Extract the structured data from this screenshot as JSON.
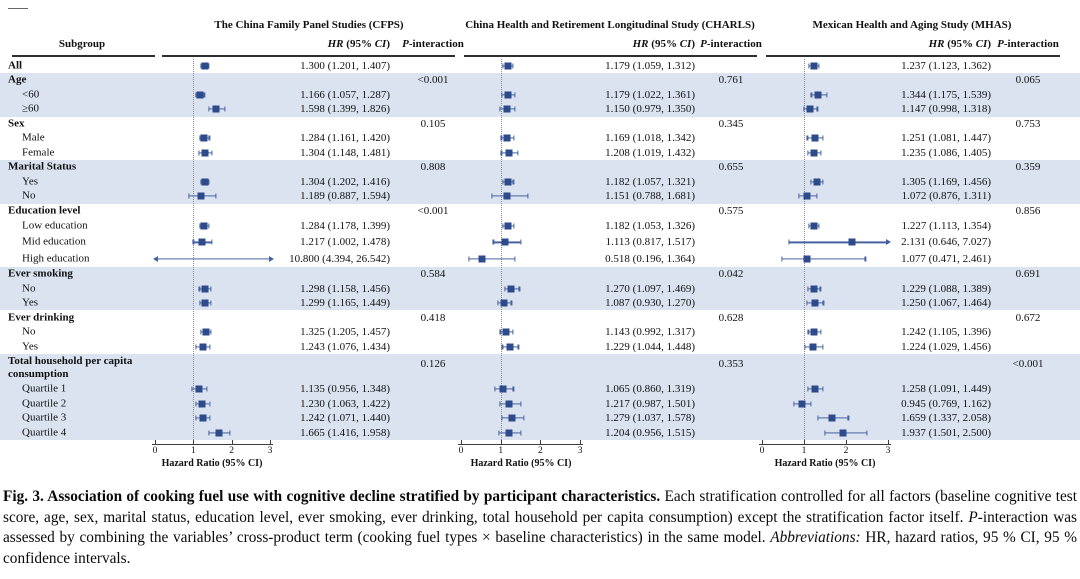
{
  "figure": {
    "subgroup_header": "Subgroup",
    "hr_header": {
      "hr": "HR",
      "mid": " (95% ",
      "ci": "CI",
      "end": ")"
    },
    "p_header": {
      "p": "P",
      "rest": "-interaction"
    }
  },
  "chart_data": {
    "type": "forest",
    "xlabel": "Hazard Ratio (95% CI)",
    "x_ticks": [
      0,
      1,
      2,
      3
    ],
    "xlim": [
      0,
      3
    ],
    "reference_line": 1,
    "legend_position": "none",
    "studies": [
      "The China Family Panel Studies (CFPS)",
      "China Health and Retirement Longitudinal Study (CHARLS)",
      "Mexican Health and Aging Study (MHAS)"
    ],
    "rows": [
      {
        "label": "All",
        "kind": "item",
        "bold": true,
        "band": "white",
        "est": [
          {
            "hr": 1.3,
            "lo": 1.201,
            "hi": 1.407,
            "text": "1.300 (1.201, 1.407)"
          },
          {
            "hr": 1.179,
            "lo": 1.059,
            "hi": 1.312,
            "text": "1.179 (1.059, 1.312)"
          },
          {
            "hr": 1.237,
            "lo": 1.123,
            "hi": 1.362,
            "text": "1.237 (1.123, 1.362)"
          }
        ]
      },
      {
        "label": "Age",
        "kind": "group",
        "band": "blue",
        "p_values": [
          "<0.001",
          "0.761",
          "0.065"
        ]
      },
      {
        "label": "<60",
        "kind": "item",
        "band": "blue",
        "est": [
          {
            "hr": 1.166,
            "lo": 1.057,
            "hi": 1.287,
            "text": "1.166 (1.057, 1.287)"
          },
          {
            "hr": 1.179,
            "lo": 1.022,
            "hi": 1.361,
            "text": "1.179 (1.022, 1.361)"
          },
          {
            "hr": 1.344,
            "lo": 1.175,
            "hi": 1.539,
            "text": "1.344 (1.175, 1.539)"
          }
        ]
      },
      {
        "label": "≥60",
        "kind": "item",
        "band": "blue",
        "est": [
          {
            "hr": 1.598,
            "lo": 1.399,
            "hi": 1.826,
            "text": "1.598 (1.399, 1.826)"
          },
          {
            "hr": 1.15,
            "lo": 0.979,
            "hi": 1.35,
            "text": "1.150 (0.979, 1.350)"
          },
          {
            "hr": 1.147,
            "lo": 0.998,
            "hi": 1.318,
            "text": "1.147 (0.998, 1.318)"
          }
        ]
      },
      {
        "label": "Sex",
        "kind": "group",
        "band": "white",
        "p_values": [
          "0.105",
          "0.345",
          "0.753"
        ]
      },
      {
        "label": "Male",
        "kind": "item",
        "band": "white",
        "est": [
          {
            "hr": 1.284,
            "lo": 1.161,
            "hi": 1.42,
            "text": "1.284 (1.161, 1.420)"
          },
          {
            "hr": 1.169,
            "lo": 1.018,
            "hi": 1.342,
            "text": "1.169 (1.018, 1.342)"
          },
          {
            "hr": 1.251,
            "lo": 1.081,
            "hi": 1.447,
            "text": "1.251 (1.081, 1.447)"
          }
        ]
      },
      {
        "label": "Female",
        "kind": "item",
        "band": "white",
        "est": [
          {
            "hr": 1.304,
            "lo": 1.148,
            "hi": 1.481,
            "text": "1.304 (1.148, 1.481)"
          },
          {
            "hr": 1.208,
            "lo": 1.019,
            "hi": 1.432,
            "text": "1.208 (1.019, 1.432)"
          },
          {
            "hr": 1.235,
            "lo": 1.086,
            "hi": 1.405,
            "text": "1.235 (1.086, 1.405)"
          }
        ]
      },
      {
        "label": "Marital Status",
        "kind": "group",
        "band": "blue",
        "p_values": [
          "0.808",
          "0.655",
          "0.359"
        ]
      },
      {
        "label": "Yes",
        "kind": "item",
        "band": "blue",
        "est": [
          {
            "hr": 1.304,
            "lo": 1.202,
            "hi": 1.416,
            "text": "1.304 (1.202, 1.416)"
          },
          {
            "hr": 1.182,
            "lo": 1.057,
            "hi": 1.321,
            "text": "1.182 (1.057, 1.321)"
          },
          {
            "hr": 1.305,
            "lo": 1.169,
            "hi": 1.456,
            "text": "1.305 (1.169, 1.456)"
          }
        ]
      },
      {
        "label": "No",
        "kind": "item",
        "band": "blue",
        "est": [
          {
            "hr": 1.189,
            "lo": 0.887,
            "hi": 1.594,
            "text": "1.189 (0.887, 1.594)"
          },
          {
            "hr": 1.151,
            "lo": 0.788,
            "hi": 1.681,
            "text": "1.151 (0.788, 1.681)"
          },
          {
            "hr": 1.072,
            "lo": 0.876,
            "hi": 1.311,
            "text": "1.072 (0.876, 1.311)"
          }
        ]
      },
      {
        "label": "Education level",
        "kind": "group",
        "band": "white",
        "p_values": [
          "<0.001",
          "0.575",
          "0.856"
        ]
      },
      {
        "label": "Low education",
        "kind": "item",
        "tall": true,
        "band": "white",
        "est": [
          {
            "hr": 1.284,
            "lo": 1.178,
            "hi": 1.399,
            "text": "1.284 (1.178, 1.399)"
          },
          {
            "hr": 1.182,
            "lo": 1.053,
            "hi": 1.326,
            "text": "1.182 (1.053, 1.326)"
          },
          {
            "hr": 1.227,
            "lo": 1.113,
            "hi": 1.354,
            "text": "1.227 (1.113, 1.354)"
          }
        ]
      },
      {
        "label": "Mid education",
        "kind": "item",
        "tall": true,
        "band": "white",
        "est": [
          {
            "hr": 1.217,
            "lo": 1.002,
            "hi": 1.478,
            "text": "1.217 (1.002, 1.478)"
          },
          {
            "hr": 1.113,
            "lo": 0.817,
            "hi": 1.517,
            "text": "1.113 (0.817, 1.517)"
          },
          {
            "hr": 2.131,
            "lo": 0.646,
            "hi": 7.027,
            "text": "2.131 (0.646, 7.027)",
            "arrow": "right"
          }
        ]
      },
      {
        "label": "High education",
        "kind": "item",
        "tall": true,
        "band": "white",
        "est": [
          {
            "hr": 10.8,
            "lo": 4.394,
            "hi": 26.542,
            "text": "10.800 (4.394, 26.542)",
            "arrow": "both"
          },
          {
            "hr": 0.518,
            "lo": 0.196,
            "hi": 1.364,
            "text": "0.518 (0.196, 1.364)"
          },
          {
            "hr": 1.077,
            "lo": 0.471,
            "hi": 2.461,
            "text": "1.077 (0.471, 2.461)"
          }
        ]
      },
      {
        "label": "Ever smoking",
        "kind": "group",
        "band": "blue",
        "p_values": [
          "0.584",
          "0.042",
          "0.691"
        ]
      },
      {
        "label": "No",
        "kind": "item",
        "band": "blue",
        "est": [
          {
            "hr": 1.298,
            "lo": 1.158,
            "hi": 1.456,
            "text": "1.298 (1.158, 1.456)"
          },
          {
            "hr": 1.27,
            "lo": 1.097,
            "hi": 1.469,
            "text": "1.270 (1.097, 1.469)"
          },
          {
            "hr": 1.229,
            "lo": 1.088,
            "hi": 1.389,
            "text": "1.229 (1.088, 1.389)"
          }
        ]
      },
      {
        "label": "Yes",
        "kind": "item",
        "band": "blue",
        "est": [
          {
            "hr": 1.299,
            "lo": 1.165,
            "hi": 1.449,
            "text": "1.299 (1.165, 1.449)"
          },
          {
            "hr": 1.087,
            "lo": 0.93,
            "hi": 1.27,
            "text": "1.087 (0.930, 1.270)"
          },
          {
            "hr": 1.25,
            "lo": 1.067,
            "hi": 1.464,
            "text": "1.250 (1.067, 1.464)"
          }
        ]
      },
      {
        "label": "Ever drinking",
        "kind": "group",
        "band": "white",
        "p_values": [
          "0.418",
          "0.628",
          "0.672"
        ]
      },
      {
        "label": "No",
        "kind": "item",
        "band": "white",
        "est": [
          {
            "hr": 1.325,
            "lo": 1.205,
            "hi": 1.457,
            "text": "1.325 (1.205, 1.457)"
          },
          {
            "hr": 1.143,
            "lo": 0.992,
            "hi": 1.317,
            "text": "1.143 (0.992, 1.317)"
          },
          {
            "hr": 1.242,
            "lo": 1.105,
            "hi": 1.396,
            "text": "1.242 (1.105, 1.396)"
          }
        ]
      },
      {
        "label": "Yes",
        "kind": "item",
        "band": "white",
        "est": [
          {
            "hr": 1.243,
            "lo": 1.076,
            "hi": 1.434,
            "text": "1.243 (1.076, 1.434)"
          },
          {
            "hr": 1.229,
            "lo": 1.044,
            "hi": 1.448,
            "text": "1.229 (1.044, 1.448)"
          },
          {
            "hr": 1.224,
            "lo": 1.029,
            "hi": 1.456,
            "text": "1.224 (1.029, 1.456)"
          }
        ]
      },
      {
        "label": "Total household per capita consumption",
        "kind": "group2",
        "band": "blue",
        "label_lines": [
          "Total household per capita",
          "consumption"
        ],
        "p_values": [
          "0.126",
          "0.353",
          "<0.001"
        ]
      },
      {
        "label": "Quartile 1",
        "kind": "item",
        "band": "blue",
        "est": [
          {
            "hr": 1.135,
            "lo": 0.956,
            "hi": 1.348,
            "text": "1.135 (0.956, 1.348)"
          },
          {
            "hr": 1.065,
            "lo": 0.86,
            "hi": 1.319,
            "text": "1.065 (0.860, 1.319)"
          },
          {
            "hr": 1.258,
            "lo": 1.091,
            "hi": 1.449,
            "text": "1.258 (1.091, 1.449)"
          }
        ]
      },
      {
        "label": "Quartile 2",
        "kind": "item",
        "band": "blue",
        "est": [
          {
            "hr": 1.23,
            "lo": 1.063,
            "hi": 1.422,
            "text": "1.230 (1.063, 1.422)"
          },
          {
            "hr": 1.217,
            "lo": 0.987,
            "hi": 1.501,
            "text": "1.217 (0.987, 1.501)"
          },
          {
            "hr": 0.945,
            "lo": 0.769,
            "hi": 1.162,
            "text": "0.945 (0.769, 1.162)"
          }
        ]
      },
      {
        "label": "Quartile 3",
        "kind": "item",
        "band": "blue",
        "est": [
          {
            "hr": 1.242,
            "lo": 1.071,
            "hi": 1.44,
            "text": "1.242 (1.071, 1.440)"
          },
          {
            "hr": 1.279,
            "lo": 1.037,
            "hi": 1.578,
            "text": "1.279 (1.037, 1.578)"
          },
          {
            "hr": 1.659,
            "lo": 1.337,
            "hi": 2.058,
            "text": "1.659 (1.337, 2.058)"
          }
        ]
      },
      {
        "label": "Quartile 4",
        "kind": "item",
        "band": "blue",
        "est": [
          {
            "hr": 1.665,
            "lo": 1.416,
            "hi": 1.958,
            "text": "1.665 (1.416, 1.958)"
          },
          {
            "hr": 1.204,
            "lo": 0.956,
            "hi": 1.515,
            "text": "1.204 (0.956, 1.515)"
          },
          {
            "hr": 1.937,
            "lo": 1.501,
            "hi": 2.5,
            "text": "1.937 (1.501, 2.500)"
          }
        ]
      }
    ],
    "colors": {
      "marker": "#2d4a8b",
      "ci_line": "#46639f",
      "band_blue": "#dae3ef",
      "reference_line": "#8a8a8a"
    }
  },
  "caption": {
    "segments": [
      {
        "text": "Fig. 3. Association of cooking fuel use with cognitive decline stratified by participant characteristics. ",
        "bold": true
      },
      {
        "text": "Each stratification controlled for all factors (baseline cognitive test score, age, sex, marital status, education level, ever smoking, ever drinking, total household per capita consumption) except the stratification factor itself. "
      },
      {
        "text": "P",
        "italic": true
      },
      {
        "text": "-interaction was assessed by combining the variables’ cross-product term (cooking fuel types × baseline characteristics) in the same model. "
      },
      {
        "text": "Abbreviations:",
        "italic": true
      },
      {
        "text": " HR, hazard ratios, 95 % CI, 95 % confidence intervals."
      }
    ]
  }
}
